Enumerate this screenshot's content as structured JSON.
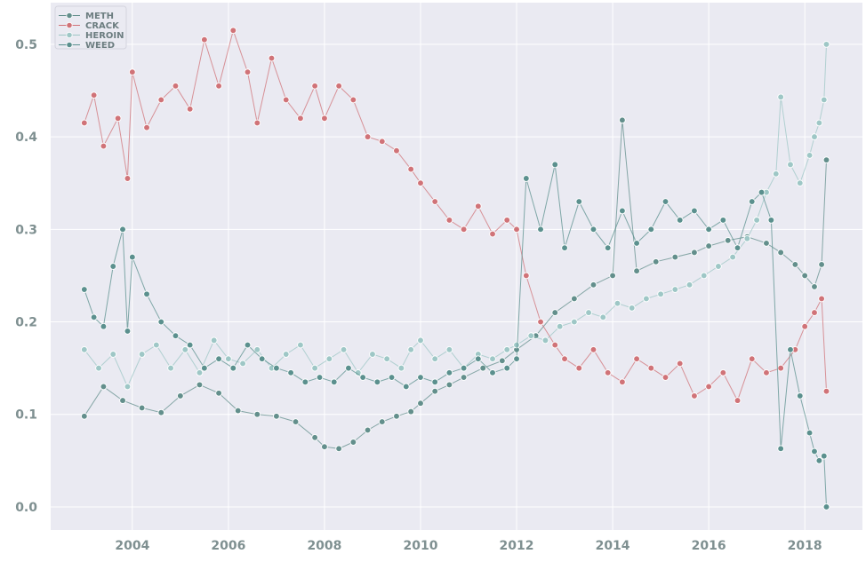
{
  "chart_data": {
    "type": "line",
    "title": "",
    "xlabel": "",
    "ylabel": "",
    "xlim": [
      2002.3,
      2019.2
    ],
    "ylim": [
      -0.025,
      0.545
    ],
    "x_ticks": [
      2004,
      2006,
      2008,
      2010,
      2012,
      2014,
      2016,
      2018
    ],
    "x_tick_labels": [
      "2004",
      "2006",
      "2008",
      "2010",
      "2012",
      "2014",
      "2016",
      "2018"
    ],
    "y_ticks": [
      0.0,
      0.1,
      0.2,
      0.3,
      0.4,
      0.5
    ],
    "y_tick_labels": [
      "0.0",
      "0.1",
      "0.2",
      "0.3",
      "0.4",
      "0.5"
    ],
    "grid": true,
    "legend_position": "top-left",
    "background": "#eaeaf2",
    "series": [
      {
        "name": "METH",
        "color": "#638f8c",
        "points": [
          [
            2003.0,
            0.098
          ],
          [
            2003.4,
            0.13
          ],
          [
            2003.8,
            0.115
          ],
          [
            2004.2,
            0.107
          ],
          [
            2004.6,
            0.102
          ],
          [
            2005.0,
            0.12
          ],
          [
            2005.4,
            0.132
          ],
          [
            2005.8,
            0.123
          ],
          [
            2006.2,
            0.104
          ],
          [
            2006.6,
            0.1
          ],
          [
            2007.0,
            0.098
          ],
          [
            2007.4,
            0.092
          ],
          [
            2007.8,
            0.075
          ],
          [
            2008.0,
            0.065
          ],
          [
            2008.3,
            0.063
          ],
          [
            2008.6,
            0.07
          ],
          [
            2008.9,
            0.083
          ],
          [
            2009.2,
            0.092
          ],
          [
            2009.5,
            0.098
          ],
          [
            2009.8,
            0.103
          ],
          [
            2010.0,
            0.112
          ],
          [
            2010.3,
            0.125
          ],
          [
            2010.6,
            0.132
          ],
          [
            2010.9,
            0.14
          ],
          [
            2011.3,
            0.15
          ],
          [
            2011.7,
            0.158
          ],
          [
            2012.0,
            0.17
          ],
          [
            2012.4,
            0.185
          ],
          [
            2012.8,
            0.21
          ],
          [
            2013.2,
            0.225
          ],
          [
            2013.6,
            0.24
          ],
          [
            2014.0,
            0.25
          ],
          [
            2014.2,
            0.418
          ],
          [
            2014.5,
            0.255
          ],
          [
            2014.9,
            0.265
          ],
          [
            2015.3,
            0.27
          ],
          [
            2015.7,
            0.275
          ],
          [
            2016.0,
            0.282
          ],
          [
            2016.4,
            0.288
          ],
          [
            2016.8,
            0.292
          ],
          [
            2017.2,
            0.285
          ],
          [
            2017.5,
            0.275
          ],
          [
            2017.8,
            0.262
          ],
          [
            2018.0,
            0.25
          ],
          [
            2018.2,
            0.238
          ],
          [
            2018.35,
            0.262
          ],
          [
            2018.45,
            0.375
          ]
        ]
      },
      {
        "name": "CRACK",
        "color": "#d07378",
        "points": [
          [
            2003.0,
            0.415
          ],
          [
            2003.2,
            0.445
          ],
          [
            2003.4,
            0.39
          ],
          [
            2003.7,
            0.42
          ],
          [
            2003.9,
            0.355
          ],
          [
            2004.0,
            0.47
          ],
          [
            2004.3,
            0.41
          ],
          [
            2004.6,
            0.44
          ],
          [
            2004.9,
            0.455
          ],
          [
            2005.2,
            0.43
          ],
          [
            2005.5,
            0.505
          ],
          [
            2005.8,
            0.455
          ],
          [
            2006.1,
            0.515
          ],
          [
            2006.4,
            0.47
          ],
          [
            2006.6,
            0.415
          ],
          [
            2006.9,
            0.485
          ],
          [
            2007.2,
            0.44
          ],
          [
            2007.5,
            0.42
          ],
          [
            2007.8,
            0.455
          ],
          [
            2008.0,
            0.42
          ],
          [
            2008.3,
            0.455
          ],
          [
            2008.6,
            0.44
          ],
          [
            2008.9,
            0.4
          ],
          [
            2009.2,
            0.395
          ],
          [
            2009.5,
            0.385
          ],
          [
            2009.8,
            0.365
          ],
          [
            2010.0,
            0.35
          ],
          [
            2010.3,
            0.33
          ],
          [
            2010.6,
            0.31
          ],
          [
            2010.9,
            0.3
          ],
          [
            2011.2,
            0.325
          ],
          [
            2011.5,
            0.295
          ],
          [
            2011.8,
            0.31
          ],
          [
            2012.0,
            0.3
          ],
          [
            2012.2,
            0.25
          ],
          [
            2012.5,
            0.2
          ],
          [
            2012.8,
            0.175
          ],
          [
            2013.0,
            0.16
          ],
          [
            2013.3,
            0.15
          ],
          [
            2013.6,
            0.17
          ],
          [
            2013.9,
            0.145
          ],
          [
            2014.2,
            0.135
          ],
          [
            2014.5,
            0.16
          ],
          [
            2014.8,
            0.15
          ],
          [
            2015.1,
            0.14
          ],
          [
            2015.4,
            0.155
          ],
          [
            2015.7,
            0.12
          ],
          [
            2016.0,
            0.13
          ],
          [
            2016.3,
            0.145
          ],
          [
            2016.6,
            0.115
          ],
          [
            2016.9,
            0.16
          ],
          [
            2017.2,
            0.145
          ],
          [
            2017.5,
            0.15
          ],
          [
            2017.8,
            0.17
          ],
          [
            2018.0,
            0.195
          ],
          [
            2018.2,
            0.21
          ],
          [
            2018.35,
            0.225
          ],
          [
            2018.45,
            0.125
          ]
        ]
      },
      {
        "name": "HEROIN",
        "color": "#9ec7c6",
        "points": [
          [
            2003.0,
            0.17
          ],
          [
            2003.3,
            0.15
          ],
          [
            2003.6,
            0.165
          ],
          [
            2003.9,
            0.13
          ],
          [
            2004.2,
            0.165
          ],
          [
            2004.5,
            0.175
          ],
          [
            2004.8,
            0.15
          ],
          [
            2005.1,
            0.17
          ],
          [
            2005.4,
            0.145
          ],
          [
            2005.7,
            0.18
          ],
          [
            2006.0,
            0.16
          ],
          [
            2006.3,
            0.155
          ],
          [
            2006.6,
            0.17
          ],
          [
            2006.9,
            0.15
          ],
          [
            2007.2,
            0.165
          ],
          [
            2007.5,
            0.175
          ],
          [
            2007.8,
            0.15
          ],
          [
            2008.1,
            0.16
          ],
          [
            2008.4,
            0.17
          ],
          [
            2008.7,
            0.145
          ],
          [
            2009.0,
            0.165
          ],
          [
            2009.3,
            0.16
          ],
          [
            2009.6,
            0.15
          ],
          [
            2009.8,
            0.17
          ],
          [
            2010.0,
            0.18
          ],
          [
            2010.3,
            0.16
          ],
          [
            2010.6,
            0.17
          ],
          [
            2010.9,
            0.15
          ],
          [
            2011.2,
            0.165
          ],
          [
            2011.5,
            0.16
          ],
          [
            2011.8,
            0.17
          ],
          [
            2012.0,
            0.175
          ],
          [
            2012.3,
            0.185
          ],
          [
            2012.6,
            0.18
          ],
          [
            2012.9,
            0.195
          ],
          [
            2013.2,
            0.2
          ],
          [
            2013.5,
            0.21
          ],
          [
            2013.8,
            0.205
          ],
          [
            2014.1,
            0.22
          ],
          [
            2014.4,
            0.215
          ],
          [
            2014.7,
            0.225
          ],
          [
            2015.0,
            0.23
          ],
          [
            2015.3,
            0.235
          ],
          [
            2015.6,
            0.24
          ],
          [
            2015.9,
            0.25
          ],
          [
            2016.2,
            0.26
          ],
          [
            2016.5,
            0.27
          ],
          [
            2016.8,
            0.29
          ],
          [
            2017.0,
            0.31
          ],
          [
            2017.2,
            0.34
          ],
          [
            2017.4,
            0.36
          ],
          [
            2017.5,
            0.443
          ],
          [
            2017.7,
            0.37
          ],
          [
            2017.9,
            0.35
          ],
          [
            2018.1,
            0.38
          ],
          [
            2018.2,
            0.4
          ],
          [
            2018.3,
            0.415
          ],
          [
            2018.4,
            0.44
          ],
          [
            2018.45,
            0.5
          ]
        ]
      },
      {
        "name": "WEED",
        "color": "#5b908e",
        "points": [
          [
            2003.0,
            0.235
          ],
          [
            2003.2,
            0.205
          ],
          [
            2003.4,
            0.195
          ],
          [
            2003.6,
            0.26
          ],
          [
            2003.8,
            0.3
          ],
          [
            2003.9,
            0.19
          ],
          [
            2004.0,
            0.27
          ],
          [
            2004.3,
            0.23
          ],
          [
            2004.6,
            0.2
          ],
          [
            2004.9,
            0.185
          ],
          [
            2005.2,
            0.175
          ],
          [
            2005.5,
            0.15
          ],
          [
            2005.8,
            0.16
          ],
          [
            2006.1,
            0.15
          ],
          [
            2006.4,
            0.175
          ],
          [
            2006.7,
            0.16
          ],
          [
            2007.0,
            0.15
          ],
          [
            2007.3,
            0.145
          ],
          [
            2007.6,
            0.135
          ],
          [
            2007.9,
            0.14
          ],
          [
            2008.2,
            0.135
          ],
          [
            2008.5,
            0.15
          ],
          [
            2008.8,
            0.14
          ],
          [
            2009.1,
            0.135
          ],
          [
            2009.4,
            0.14
          ],
          [
            2009.7,
            0.13
          ],
          [
            2010.0,
            0.14
          ],
          [
            2010.3,
            0.135
          ],
          [
            2010.6,
            0.145
          ],
          [
            2010.9,
            0.15
          ],
          [
            2011.2,
            0.16
          ],
          [
            2011.5,
            0.145
          ],
          [
            2011.8,
            0.15
          ],
          [
            2012.0,
            0.16
          ],
          [
            2012.2,
            0.355
          ],
          [
            2012.5,
            0.3
          ],
          [
            2012.8,
            0.37
          ],
          [
            2013.0,
            0.28
          ],
          [
            2013.3,
            0.33
          ],
          [
            2013.6,
            0.3
          ],
          [
            2013.9,
            0.28
          ],
          [
            2014.2,
            0.32
          ],
          [
            2014.5,
            0.285
          ],
          [
            2014.8,
            0.3
          ],
          [
            2015.1,
            0.33
          ],
          [
            2015.4,
            0.31
          ],
          [
            2015.7,
            0.32
          ],
          [
            2016.0,
            0.3
          ],
          [
            2016.3,
            0.31
          ],
          [
            2016.6,
            0.28
          ],
          [
            2016.9,
            0.33
          ],
          [
            2017.1,
            0.34
          ],
          [
            2017.3,
            0.31
          ],
          [
            2017.5,
            0.063
          ],
          [
            2017.7,
            0.17
          ],
          [
            2017.9,
            0.12
          ],
          [
            2018.1,
            0.08
          ],
          [
            2018.2,
            0.06
          ],
          [
            2018.3,
            0.05
          ],
          [
            2018.4,
            0.055
          ],
          [
            2018.45,
            0.0
          ]
        ]
      }
    ]
  }
}
